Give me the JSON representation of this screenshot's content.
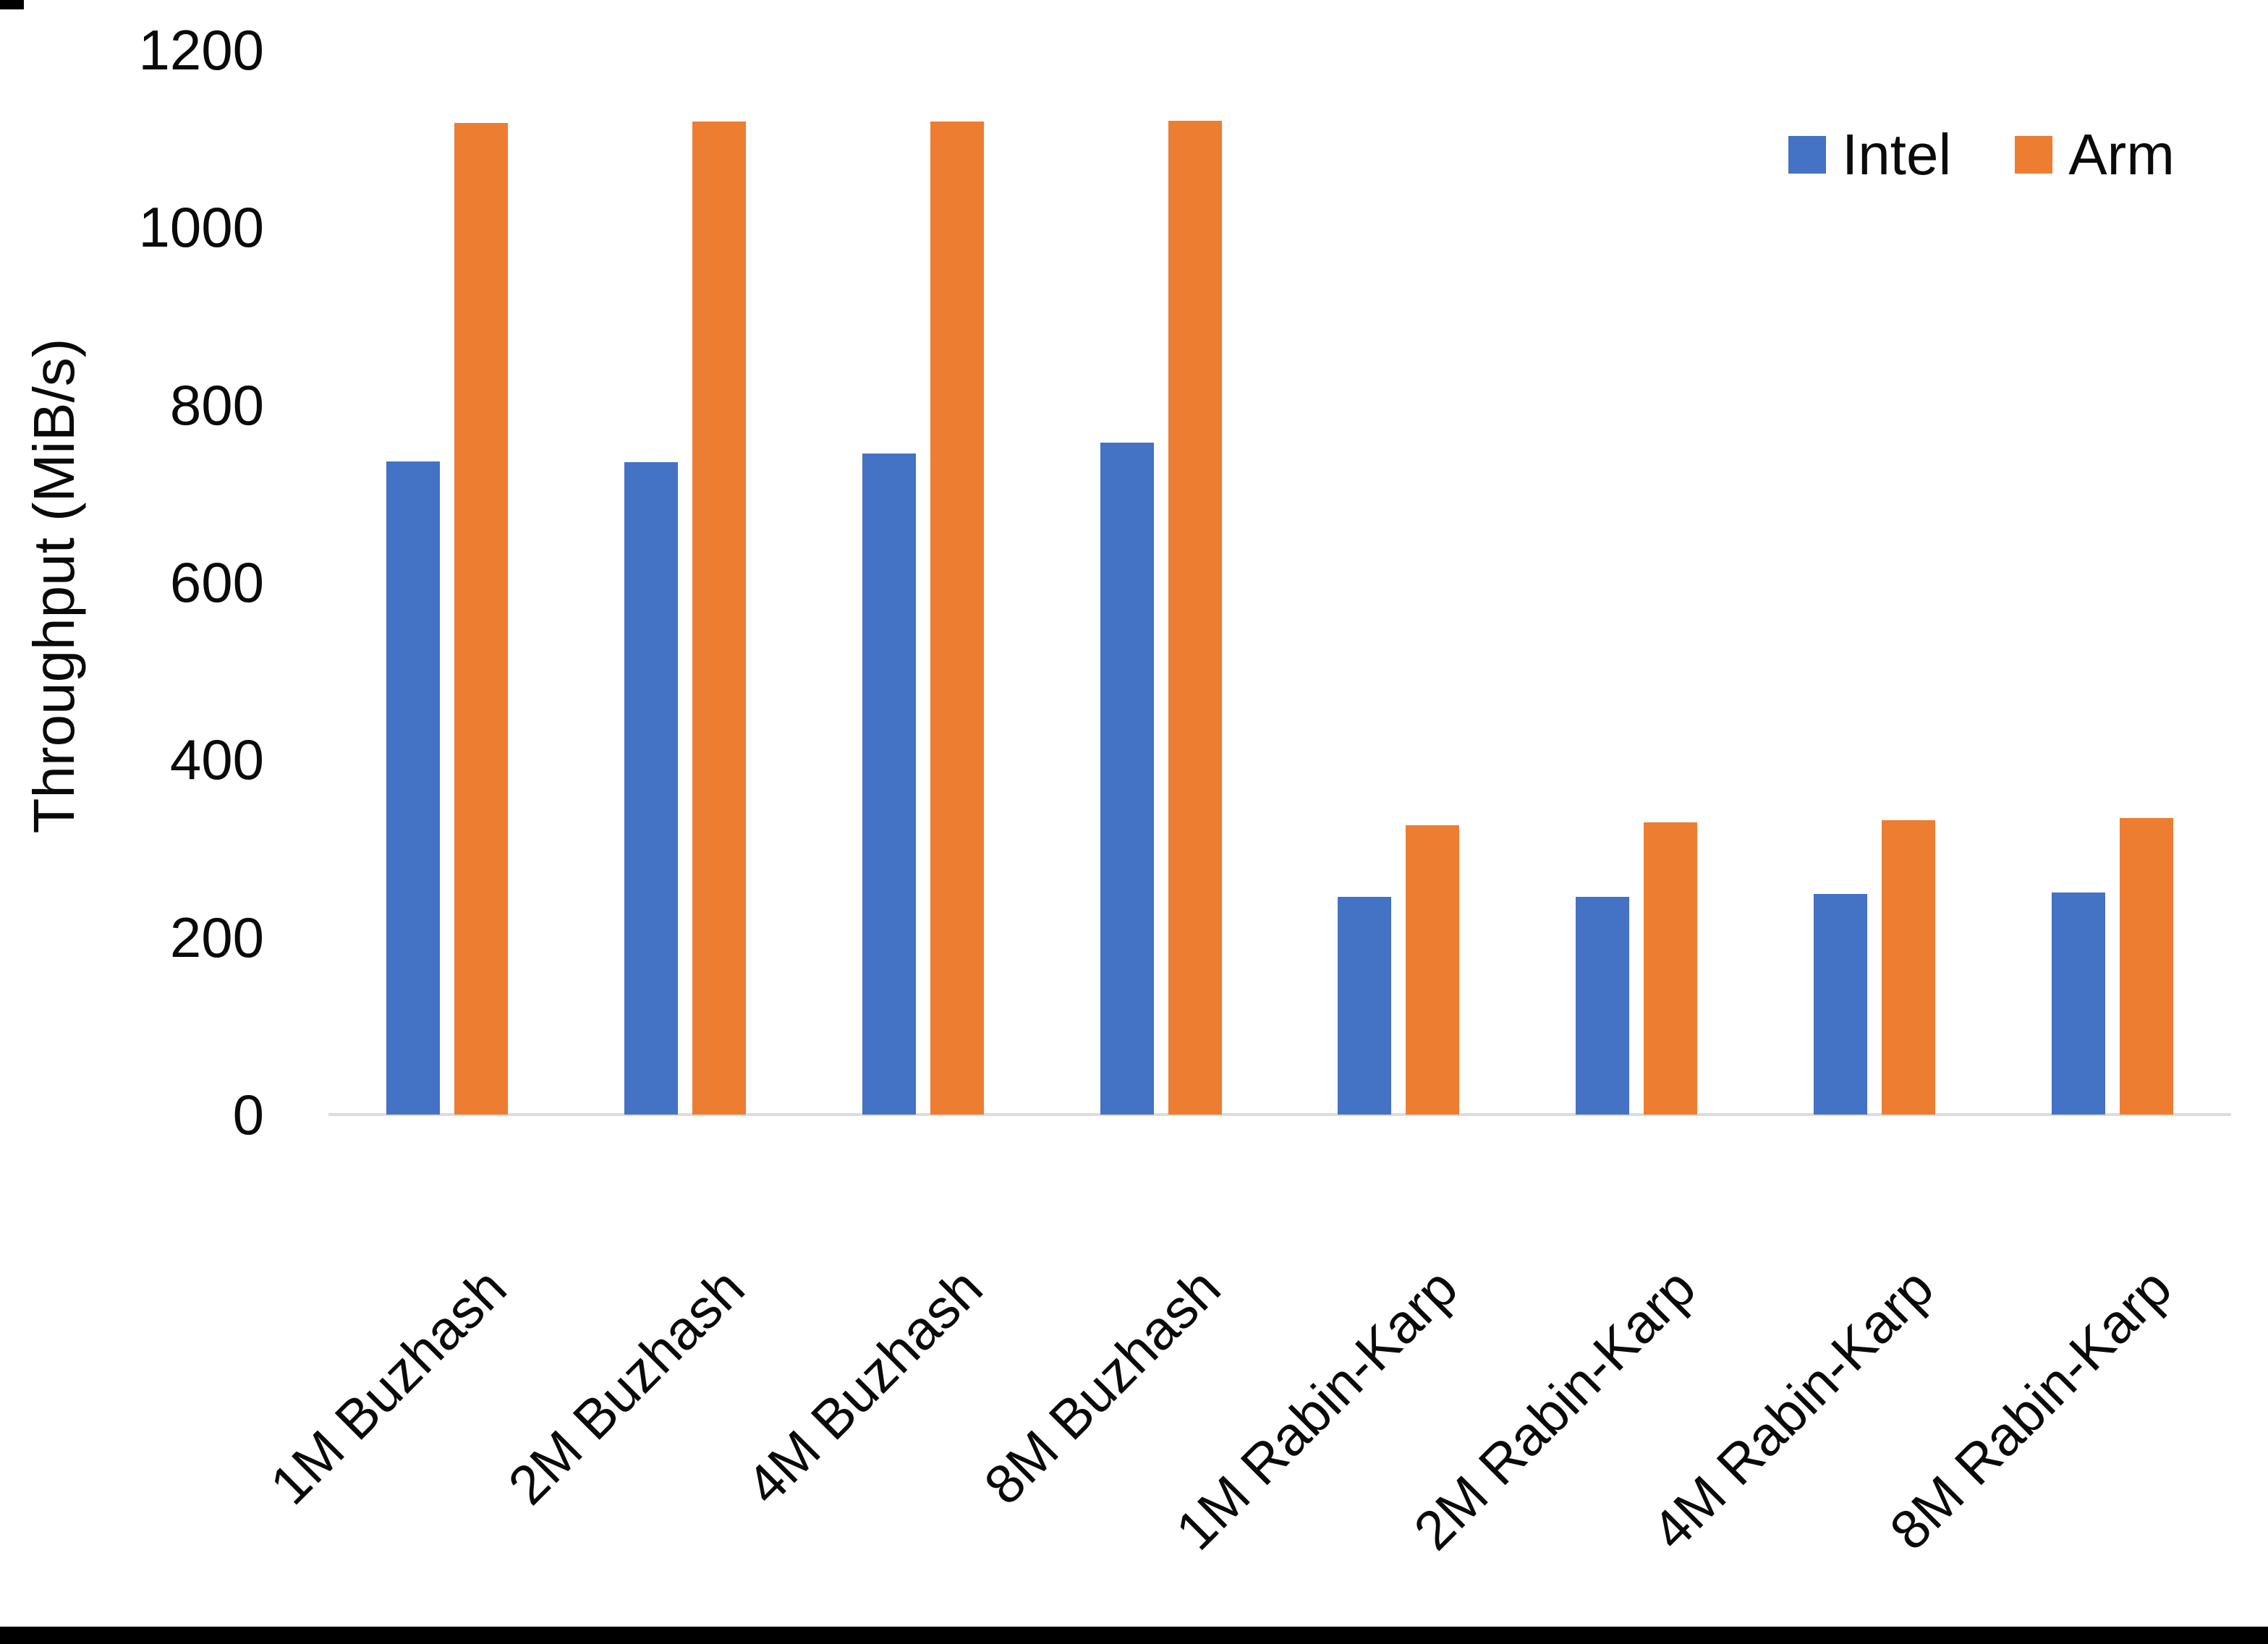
{
  "chart_data": {
    "type": "bar",
    "title": "",
    "categories": [
      "1M Buzhash",
      "2M Buzhash",
      "4M Buzhash",
      "8M Buzhash",
      "1M Rabin-Karp",
      "2M Rabin-Karp",
      "4M Rabin-Karp",
      "8M Rabin-Karp"
    ],
    "series": [
      {
        "name": "Intel",
        "color": "#4472C4",
        "values": [
          736,
          735,
          745,
          757,
          245,
          245,
          249,
          250
        ]
      },
      {
        "name": "Arm",
        "color": "#ED7D31",
        "values": [
          1118,
          1119,
          1119,
          1120,
          326,
          329,
          332,
          334
        ]
      }
    ],
    "xlabel": "",
    "ylabel": "Throughput (MiB/s)",
    "ylim": [
      0,
      1200
    ],
    "yticks": [
      0,
      200,
      400,
      600,
      800,
      1000,
      1200
    ],
    "grid": false,
    "legend_position": "top-right"
  },
  "colors": {
    "intel": "#4472C4",
    "arm": "#ED7D31",
    "axis_line": "#DCDCDC",
    "text": "#0A0A0A",
    "edge_artifact": "#000000"
  }
}
